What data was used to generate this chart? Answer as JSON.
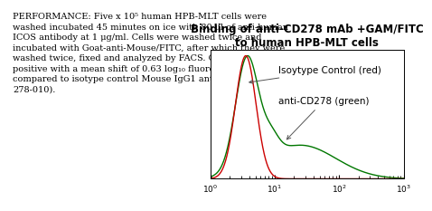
{
  "title_line1": "Binding of anti-CD278 mAb +GAM/FITC",
  "title_line2": "to human HPB-MLT cells",
  "xlim_log": [
    1.0,
    1000.0
  ],
  "ylim": [
    0,
    1.05
  ],
  "legend_label_red": "Isoytype Control (red)",
  "legend_label_green": "anti-CD278 (green)",
  "perf_bold_start": "PERFORMANCE:",
  "perf_text": " Five x 10",
  "perf_superscript": "5",
  "perf_text2": " human HPB-MLT cells were\nwashed incubated 45 minutes on ice with 80 μl of anti-human\nICOS antibody at 1 μg/ml. Cells were washed twice and\nincubated with Goat-anti-Mouse/FITC, after which they were\nwashed twice, fixed and analyzed by FACS. Cells stained\npositive with a mean shift of 0.63 log",
  "perf_subscript": "10",
  "perf_text3": " fluorescent units when\ncompared to isotype control Mouse IgG1 antibody (catalog #\n278-010).",
  "red_color": "#cc0000",
  "green_color": "#007700",
  "background_color": "#ffffff",
  "title_fontsize": 8.5,
  "text_fontsize": 7.0,
  "annotation_fontsize": 7.5
}
